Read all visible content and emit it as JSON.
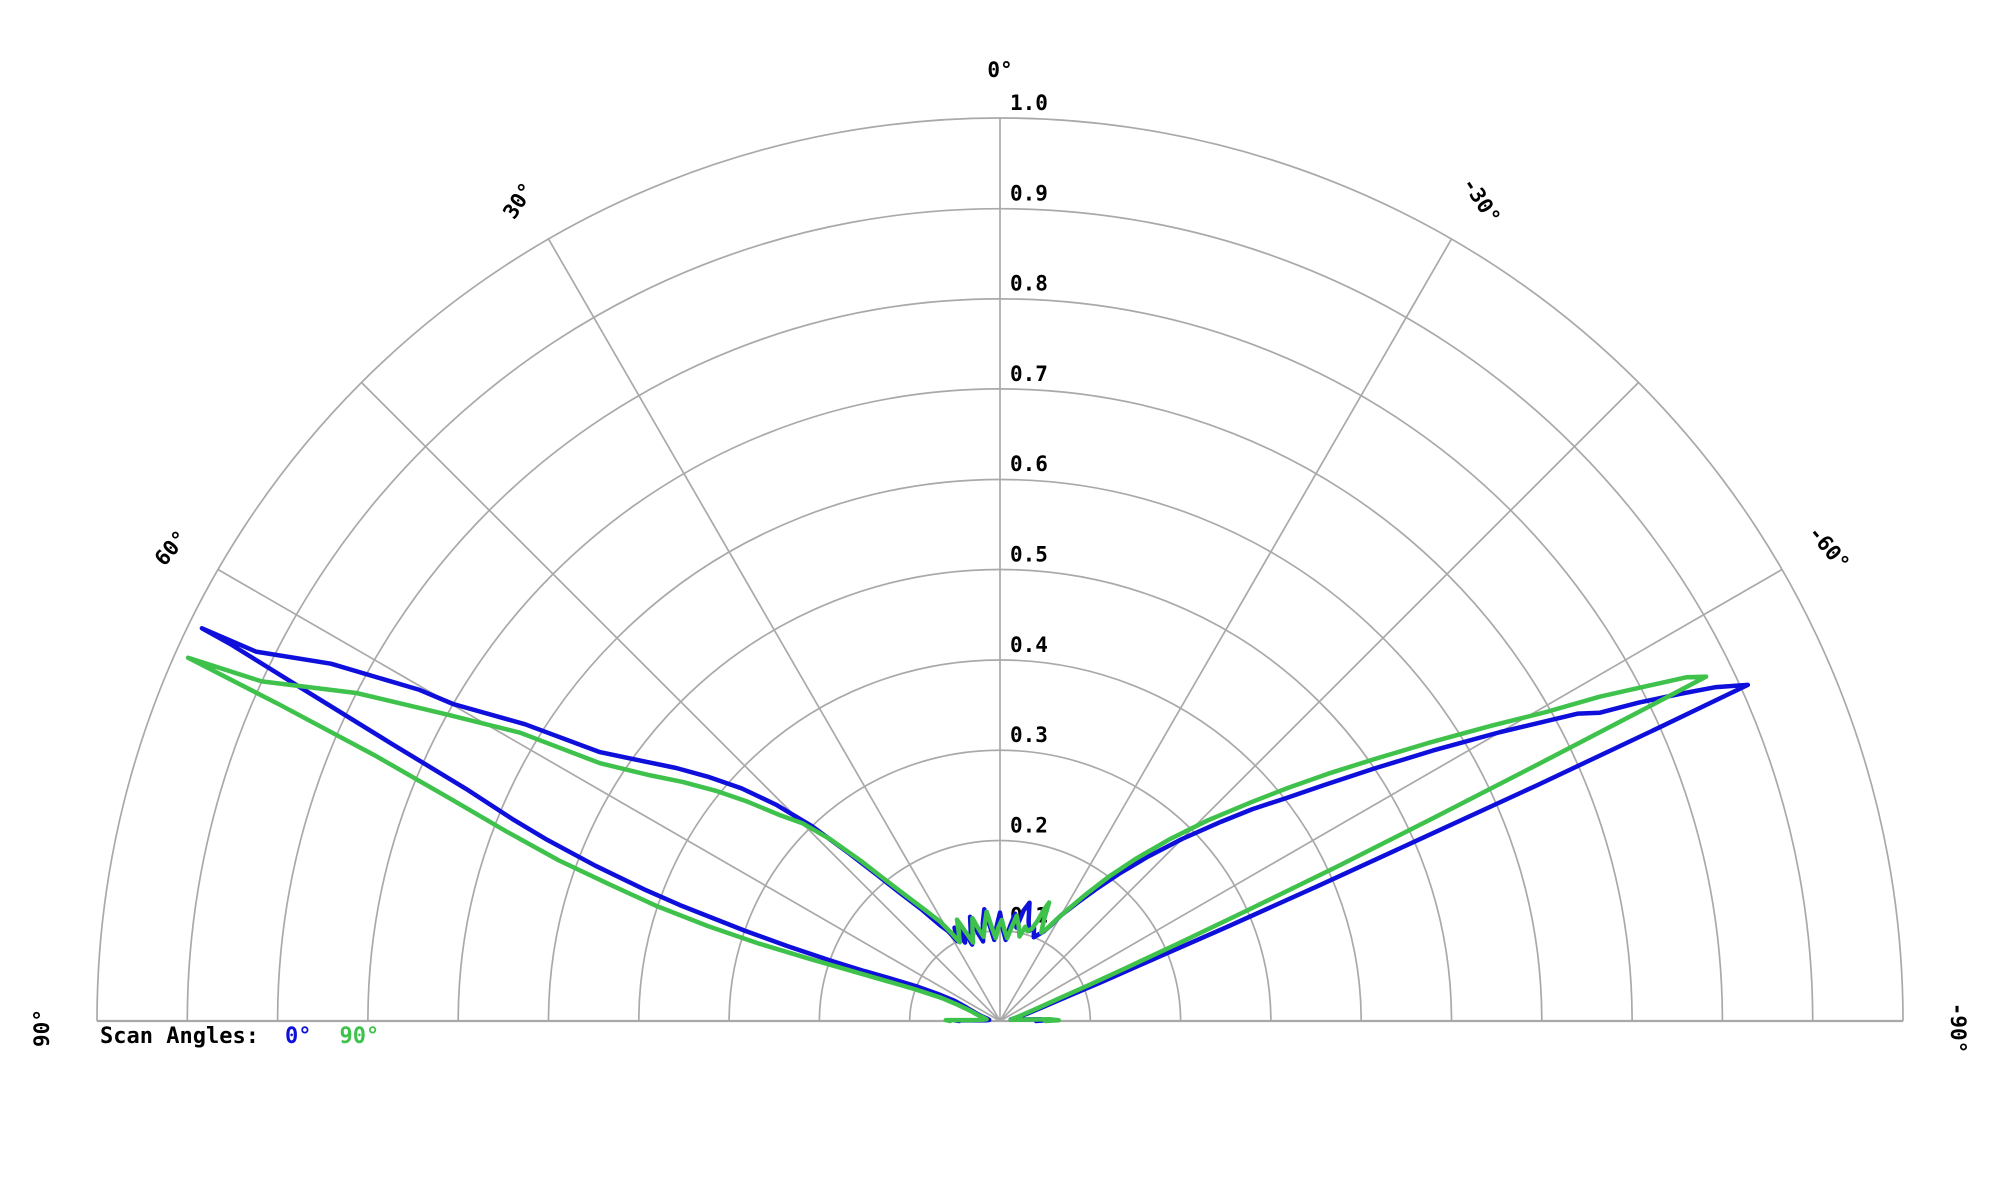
{
  "chart_data": {
    "type": "line",
    "subtype": "half-polar-radiation-pattern",
    "title": "",
    "legend": {
      "prefix": "Scan Angles:",
      "position": "bottom-left",
      "entries": [
        {
          "label": "0°",
          "color": "#0f0fdc"
        },
        {
          "label": "90°",
          "color": "#3fc24c"
        }
      ]
    },
    "axes": {
      "theta_unit": "degrees",
      "theta_range": [
        -90,
        90
      ],
      "theta_grid_deg": [
        0,
        30,
        45,
        60,
        90,
        -30,
        -45,
        -60,
        -90
      ],
      "theta_tick_labels": [
        {
          "deg": 0,
          "label": "0°",
          "rot": 0
        },
        {
          "deg": 30,
          "label": "30°",
          "rot": -57
        },
        {
          "deg": -30,
          "label": "-30°",
          "rot": 57
        },
        {
          "deg": 60,
          "label": "60°",
          "rot": -50
        },
        {
          "deg": -60,
          "label": "-60°",
          "rot": 50
        },
        {
          "deg": 90,
          "label": "90°",
          "rot": -90
        },
        {
          "deg": -90,
          "label": "-90°",
          "rot": 90
        }
      ],
      "r_range": [
        0,
        1.0
      ],
      "r_tick_labels": [
        "0.1",
        "0.2",
        "0.3",
        "0.4",
        "0.5",
        "0.6",
        "0.7",
        "0.8",
        "0.9",
        "1.0"
      ],
      "grid": true,
      "grid_color": "#a9a9a9",
      "text_color": "#000000"
    },
    "series": [
      {
        "name": "0°",
        "color": "#0f0fdc",
        "points": [
          [
            90,
            0.045
          ],
          [
            89.3,
            0.05
          ],
          [
            88.5,
            0.025
          ],
          [
            87,
            0.015
          ],
          [
            84,
            0.012
          ],
          [
            80,
            0.014
          ],
          [
            76,
            0.02
          ],
          [
            72,
            0.028
          ],
          [
            68,
            0.04
          ],
          [
            66,
            0.055
          ],
          [
            66.5,
            0.075
          ],
          [
            67.5,
            0.1
          ],
          [
            68.8,
            0.13
          ],
          [
            69.8,
            0.16
          ],
          [
            70.4,
            0.2
          ],
          [
            70.6,
            0.25
          ],
          [
            70.5,
            0.3
          ],
          [
            70.1,
            0.377
          ],
          [
            69.7,
            0.42
          ],
          [
            69,
            0.48
          ],
          [
            68.2,
            0.54
          ],
          [
            67.5,
            0.585
          ],
          [
            66.5,
            0.645
          ],
          [
            65.5,
            0.74
          ],
          [
            64.5,
            0.86
          ],
          [
            63.9,
            0.95
          ],
          [
            63.8,
            0.985
          ],
          [
            63.6,
            0.92
          ],
          [
            61.9,
            0.84
          ],
          [
            60.3,
            0.74
          ],
          [
            59.9,
            0.7
          ],
          [
            58,
            0.62
          ],
          [
            56.1,
            0.534
          ],
          [
            54,
            0.49
          ],
          [
            52,
            0.455
          ],
          [
            50,
            0.42
          ],
          [
            48,
            0.385
          ],
          [
            46,
            0.345
          ],
          [
            44,
            0.3
          ],
          [
            42,
            0.25
          ],
          [
            40,
            0.21
          ],
          [
            38,
            0.18
          ],
          [
            35,
            0.15
          ],
          [
            32,
            0.125
          ],
          [
            30,
            0.115
          ],
          [
            28,
            0.1
          ],
          [
            26,
            0.115
          ],
          [
            24,
            0.095
          ],
          [
            22,
            0.11
          ],
          [
            20,
            0.09
          ],
          [
            18,
            0.105
          ],
          [
            16,
            0.12
          ],
          [
            14,
            0.1
          ],
          [
            12,
            0.09
          ],
          [
            10,
            0.11
          ],
          [
            8,
            0.125
          ],
          [
            6,
            0.105
          ],
          [
            4,
            0.09
          ],
          [
            2,
            0.105
          ],
          [
            0,
            0.12
          ],
          [
            -2,
            0.1
          ],
          [
            -4,
            0.09
          ],
          [
            -6,
            0.105
          ],
          [
            -8,
            0.12
          ],
          [
            -10,
            0.105
          ],
          [
            -12,
            0.125
          ],
          [
            -14,
            0.135
          ],
          [
            -16,
            0.115
          ],
          [
            -18,
            0.105
          ],
          [
            -20,
            0.11
          ],
          [
            -22,
            0.1
          ],
          [
            -24,
            0.105
          ],
          [
            -26,
            0.11
          ],
          [
            -28,
            0.12
          ],
          [
            -30,
            0.135
          ],
          [
            -33,
            0.155
          ],
          [
            -36,
            0.18
          ],
          [
            -39,
            0.21
          ],
          [
            -42,
            0.245
          ],
          [
            -45,
            0.285
          ],
          [
            -48,
            0.33
          ],
          [
            -50,
            0.365
          ],
          [
            -52,
            0.4
          ],
          [
            -54,
            0.445
          ],
          [
            -56,
            0.5
          ],
          [
            -58,
            0.565
          ],
          [
            -60,
            0.64
          ],
          [
            -61,
            0.68
          ],
          [
            -62,
            0.725
          ],
          [
            -62.8,
            0.747
          ],
          [
            -63.5,
            0.79
          ],
          [
            -64.3,
            0.835
          ],
          [
            -65,
            0.875
          ],
          [
            -65.8,
            0.908
          ],
          [
            -66,
            0.8
          ],
          [
            -66.3,
            0.65
          ],
          [
            -66.6,
            0.5
          ],
          [
            -67,
            0.38
          ],
          [
            -67.5,
            0.27
          ],
          [
            -68,
            0.19
          ],
          [
            -69,
            0.12
          ],
          [
            -70,
            0.08
          ],
          [
            -72,
            0.05
          ],
          [
            -75,
            0.03
          ],
          [
            -78,
            0.02
          ],
          [
            -82,
            0.012
          ],
          [
            -85,
            0.018
          ],
          [
            -87.5,
            0.045
          ],
          [
            -89,
            0.05
          ],
          [
            -90,
            0.04
          ]
        ]
      },
      {
        "name": "90°",
        "color": "#3fc24c",
        "points": [
          [
            90,
            0.055
          ],
          [
            89,
            0.06
          ],
          [
            88,
            0.03
          ],
          [
            86,
            0.02
          ],
          [
            83,
            0.015
          ],
          [
            79,
            0.018
          ],
          [
            75,
            0.025
          ],
          [
            71,
            0.035
          ],
          [
            69,
            0.05
          ],
          [
            68.5,
            0.07
          ],
          [
            69.5,
            0.1
          ],
          [
            70.5,
            0.13
          ],
          [
            71.3,
            0.17
          ],
          [
            71.9,
            0.22
          ],
          [
            72.2,
            0.28
          ],
          [
            72,
            0.34
          ],
          [
            71.5,
            0.4
          ],
          [
            70.7,
            0.46
          ],
          [
            70,
            0.52
          ],
          [
            69,
            0.585
          ],
          [
            68,
            0.655
          ],
          [
            67,
            0.75
          ],
          [
            66.3,
            0.87
          ],
          [
            65.9,
            0.985
          ],
          [
            65.3,
            0.9
          ],
          [
            63,
            0.8
          ],
          [
            61,
            0.7
          ],
          [
            59,
            0.62
          ],
          [
            57.2,
            0.527
          ],
          [
            55,
            0.475
          ],
          [
            53,
            0.44
          ],
          [
            51,
            0.405
          ],
          [
            49,
            0.37
          ],
          [
            47,
            0.335
          ],
          [
            45,
            0.31
          ],
          [
            43,
            0.275
          ],
          [
            41,
            0.235
          ],
          [
            39,
            0.2
          ],
          [
            37,
            0.175
          ],
          [
            34,
            0.148
          ],
          [
            31,
            0.128
          ],
          [
            29,
            0.112
          ],
          [
            27,
            0.098
          ],
          [
            25,
            0.108
          ],
          [
            23,
            0.122
          ],
          [
            21,
            0.105
          ],
          [
            19,
            0.092
          ],
          [
            17,
            0.104
          ],
          [
            15,
            0.118
          ],
          [
            13,
            0.104
          ],
          [
            11,
            0.095
          ],
          [
            9,
            0.108
          ],
          [
            7,
            0.122
          ],
          [
            5,
            0.104
          ],
          [
            3,
            0.092
          ],
          [
            1,
            0.104
          ],
          [
            -1,
            0.112
          ],
          [
            -3,
            0.1
          ],
          [
            -5,
            0.092
          ],
          [
            -7,
            0.104
          ],
          [
            -9,
            0.118
          ],
          [
            -11,
            0.108
          ],
          [
            -13,
            0.096
          ],
          [
            -15,
            0.108
          ],
          [
            -17,
            0.104
          ],
          [
            -19,
            0.108
          ],
          [
            -20.5,
            0.118
          ],
          [
            -21.5,
            0.132
          ],
          [
            -22.5,
            0.142
          ],
          [
            -23.5,
            0.122
          ],
          [
            -25,
            0.108
          ],
          [
            -27,
            0.115
          ],
          [
            -29,
            0.128
          ],
          [
            -31,
            0.142
          ],
          [
            -34,
            0.168
          ],
          [
            -37,
            0.2
          ],
          [
            -40,
            0.235
          ],
          [
            -43,
            0.275
          ],
          [
            -46,
            0.32
          ],
          [
            -49,
            0.37
          ],
          [
            -51,
            0.41
          ],
          [
            -53,
            0.455
          ],
          [
            -55,
            0.505
          ],
          [
            -57,
            0.565
          ],
          [
            -59,
            0.635
          ],
          [
            -60.5,
            0.695
          ],
          [
            -61.6,
            0.755
          ],
          [
            -62.5,
            0.8
          ],
          [
            -63.4,
            0.85
          ],
          [
            -64,
            0.87
          ],
          [
            -64.2,
            0.78
          ],
          [
            -64.5,
            0.66
          ],
          [
            -64.9,
            0.53
          ],
          [
            -65.4,
            0.41
          ],
          [
            -65.9,
            0.3
          ],
          [
            -66.5,
            0.215
          ],
          [
            -67.2,
            0.15
          ],
          [
            -68,
            0.105
          ],
          [
            -69,
            0.072
          ],
          [
            -71,
            0.045
          ],
          [
            -74,
            0.028
          ],
          [
            -78,
            0.018
          ],
          [
            -83,
            0.012
          ],
          [
            -86,
            0.02
          ],
          [
            -88,
            0.055
          ],
          [
            -89.2,
            0.065
          ],
          [
            -90,
            0.05
          ]
        ]
      }
    ]
  }
}
